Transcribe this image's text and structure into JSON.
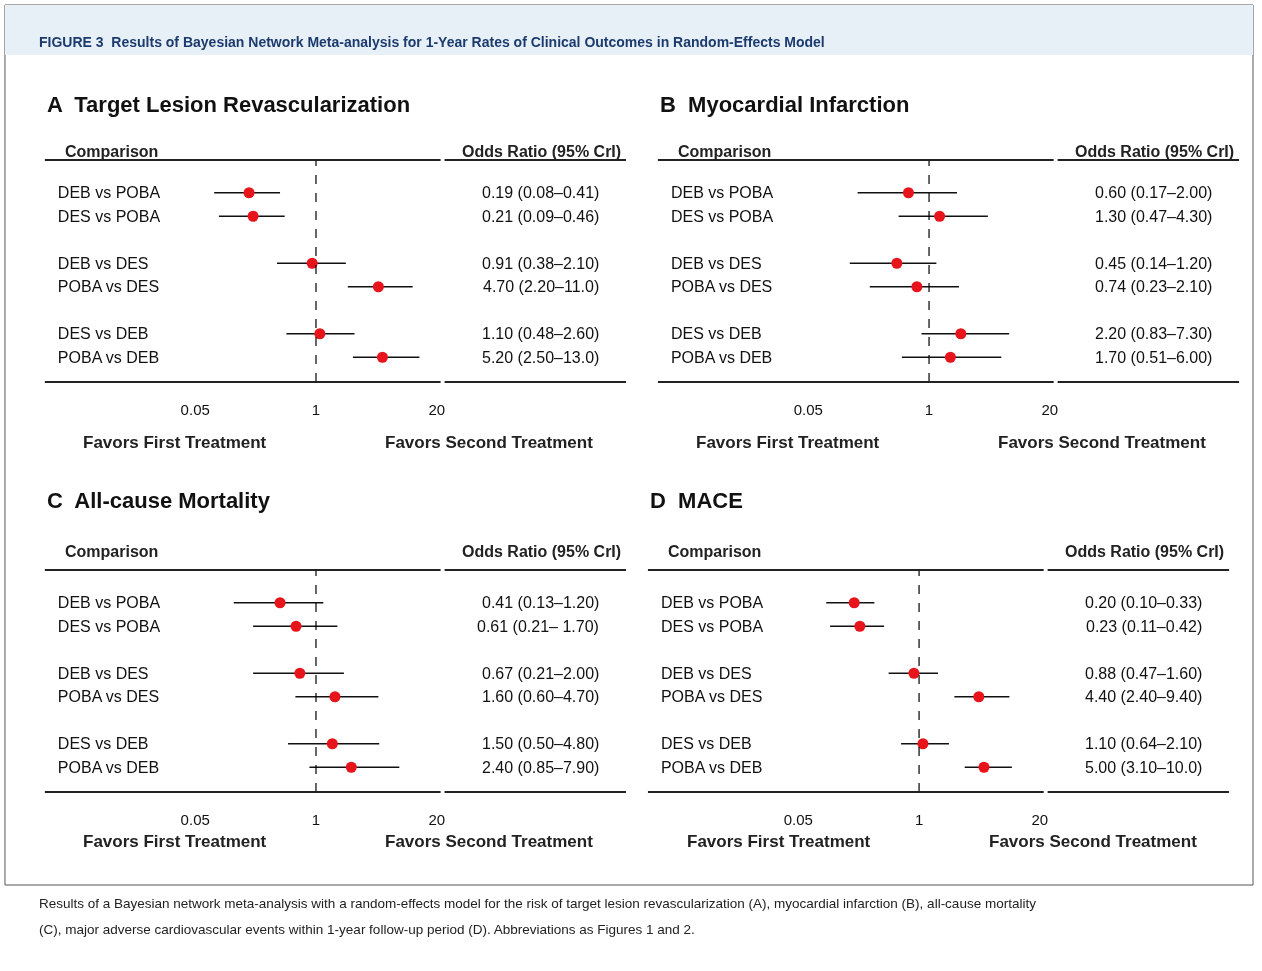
{
  "chart_data": [
    {
      "type": "scatter",
      "orientation": "horizontal",
      "title": "A  Target Lesion Revascularization",
      "categories": [
        "DEB vs POBA",
        "DES vs POBA",
        null,
        "DEB vs DES",
        "POBA vs DES",
        null,
        "DES vs DEB",
        "POBA vs DEB"
      ],
      "series": [
        {
          "color": "#e8141b",
          "values": [
            0.19,
            0.21,
            null,
            0.91,
            4.7,
            null,
            1.1,
            5.2
          ],
          "errors": [
            [
              0.08,
              0.41
            ],
            [
              0.09,
              0.46
            ],
            null,
            [
              0.38,
              2.1
            ],
            [
              2.2,
              11.0
            ],
            null,
            [
              0.48,
              2.6
            ],
            [
              2.5,
              13.0
            ]
          ],
          "value_labels": [
            "0.19 (0.08–0.41)",
            "0.21 (0.09–0.46)",
            null,
            "0.91 (0.38–2.10)",
            "4.70 (2.20–11.0)",
            null,
            "1.10 (0.48–2.60)",
            "5.20 (2.50–13.0)"
          ]
        }
      ],
      "log": "x",
      "xlim": [
        0.0012,
        22
      ],
      "xticks": [
        0.05,
        1,
        20
      ],
      "marker": "circle",
      "ref_lines": [
        {
          "axis": "x",
          "value": 1,
          "line_style": "dashed",
          "color": "#000000"
        }
      ],
      "annotations": [
        "Comparison",
        "Odds Ratio (95% CrI)",
        "Favors First Treatment",
        "Favors Second Treatment",
        "FIGURE 3  Results of Bayesian Network Meta-analysis for 1-Year Rates of Clinical Outcomes in Random-Effects Model"
      ]
    },
    {
      "type": "scatter",
      "orientation": "horizontal",
      "title": "B  Myocardial Infarction",
      "categories": [
        "DEB vs POBA",
        "DES vs POBA",
        null,
        "DEB vs DES",
        "POBA vs DES",
        null,
        "DES vs DEB",
        "POBA vs DEB"
      ],
      "series": [
        {
          "color": "#e8141b",
          "values": [
            0.6,
            1.3,
            null,
            0.45,
            0.74,
            null,
            2.2,
            1.7
          ],
          "errors": [
            [
              0.17,
              2.0
            ],
            [
              0.47,
              4.3
            ],
            null,
            [
              0.14,
              1.2
            ],
            [
              0.23,
              2.1
            ],
            null,
            [
              0.83,
              7.3
            ],
            [
              0.51,
              6.0
            ]
          ],
          "value_labels": [
            "0.60 (0.17–2.00)",
            "1.30 (0.47–4.30)",
            null,
            "0.45 (0.14–1.20)",
            "0.74 (0.23–2.10)",
            null,
            "2.20 (0.83–7.30)",
            "1.70 (0.51–6.00)"
          ]
        }
      ],
      "log": "x",
      "xlim": [
        0.0012,
        22
      ],
      "xticks": [
        0.05,
        1,
        20
      ],
      "marker": "circle",
      "ref_lines": [
        {
          "axis": "x",
          "value": 1,
          "line_style": "dashed",
          "color": "#000000"
        }
      ],
      "annotations": [
        "Comparison",
        "Odds Ratio (95% CrI)",
        "Favors First Treatment",
        "Favors Second Treatment"
      ]
    },
    {
      "type": "scatter",
      "orientation": "horizontal",
      "title": "C  All-cause Mortality",
      "categories": [
        "DEB vs POBA",
        "DES vs POBA",
        null,
        "DEB vs DES",
        "POBA vs DES",
        null,
        "DES vs DEB",
        "POBA vs DEB"
      ],
      "series": [
        {
          "color": "#e8141b",
          "values": [
            0.41,
            0.61,
            null,
            0.67,
            1.6,
            null,
            1.5,
            2.4
          ],
          "errors": [
            [
              0.13,
              1.2
            ],
            [
              0.21,
              1.7
            ],
            null,
            [
              0.21,
              2.0
            ],
            [
              0.6,
              4.7
            ],
            null,
            [
              0.5,
              4.8
            ],
            [
              0.85,
              7.9
            ]
          ],
          "value_labels": [
            "0.41 (0.13–1.20)",
            "0.61 (0.21– 1.70)",
            null,
            "0.67 (0.21–2.00)",
            "1.60 (0.60–4.70)",
            null,
            "1.50 (0.50–4.80)",
            "2.40 (0.85–7.90)"
          ]
        }
      ],
      "log": "x",
      "xlim": [
        0.0012,
        22
      ],
      "xticks": [
        0.05,
        1,
        20
      ],
      "marker": "circle",
      "ref_lines": [
        {
          "axis": "x",
          "value": 1,
          "line_style": "dashed",
          "color": "#000000"
        }
      ],
      "annotations": [
        "Comparison",
        "Odds Ratio (95% CrI)",
        "Favors First Treatment",
        "Favors Second Treatment"
      ]
    },
    {
      "type": "scatter",
      "orientation": "horizontal",
      "title": "D  MACE",
      "categories": [
        "DEB vs POBA",
        "DES vs POBA",
        null,
        "DEB vs DES",
        "POBA vs DES",
        null,
        "DES vs DEB",
        "POBA vs DEB"
      ],
      "series": [
        {
          "color": "#e8141b",
          "values": [
            0.2,
            0.23,
            null,
            0.88,
            4.4,
            null,
            1.1,
            5.0
          ],
          "errors": [
            [
              0.1,
              0.33
            ],
            [
              0.11,
              0.42
            ],
            null,
            [
              0.47,
              1.6
            ],
            [
              2.4,
              9.4
            ],
            null,
            [
              0.64,
              2.1
            ],
            [
              3.1,
              10.0
            ]
          ],
          "value_labels": [
            "0.20 (0.10–0.33)",
            "0.23 (0.11–0.42)",
            null,
            "0.88 (0.47–1.60)",
            "4.40 (2.40–9.40)",
            null,
            "1.10 (0.64–2.10)",
            "5.00 (3.10–10.0)"
          ]
        }
      ],
      "log": "x",
      "xlim": [
        0.0012,
        22
      ],
      "xticks": [
        0.05,
        1,
        20
      ],
      "marker": "circle",
      "ref_lines": [
        {
          "axis": "x",
          "value": 1,
          "line_style": "dashed",
          "color": "#000000"
        }
      ],
      "annotations": [
        "Comparison",
        "Odds Ratio (95% CrI)",
        "Favors First Treatment",
        "Favors Second Treatment",
        "Results of a Bayesian network meta-analysis with a random-effects model for the risk of target lesion revascularization (A), myocardial infarction (B), all-cause mortality",
        "(C), major adverse cardiovascular events within 1-year follow-up period (D). Abbreviations as Figures 1 and 2."
      ]
    }
  ]
}
